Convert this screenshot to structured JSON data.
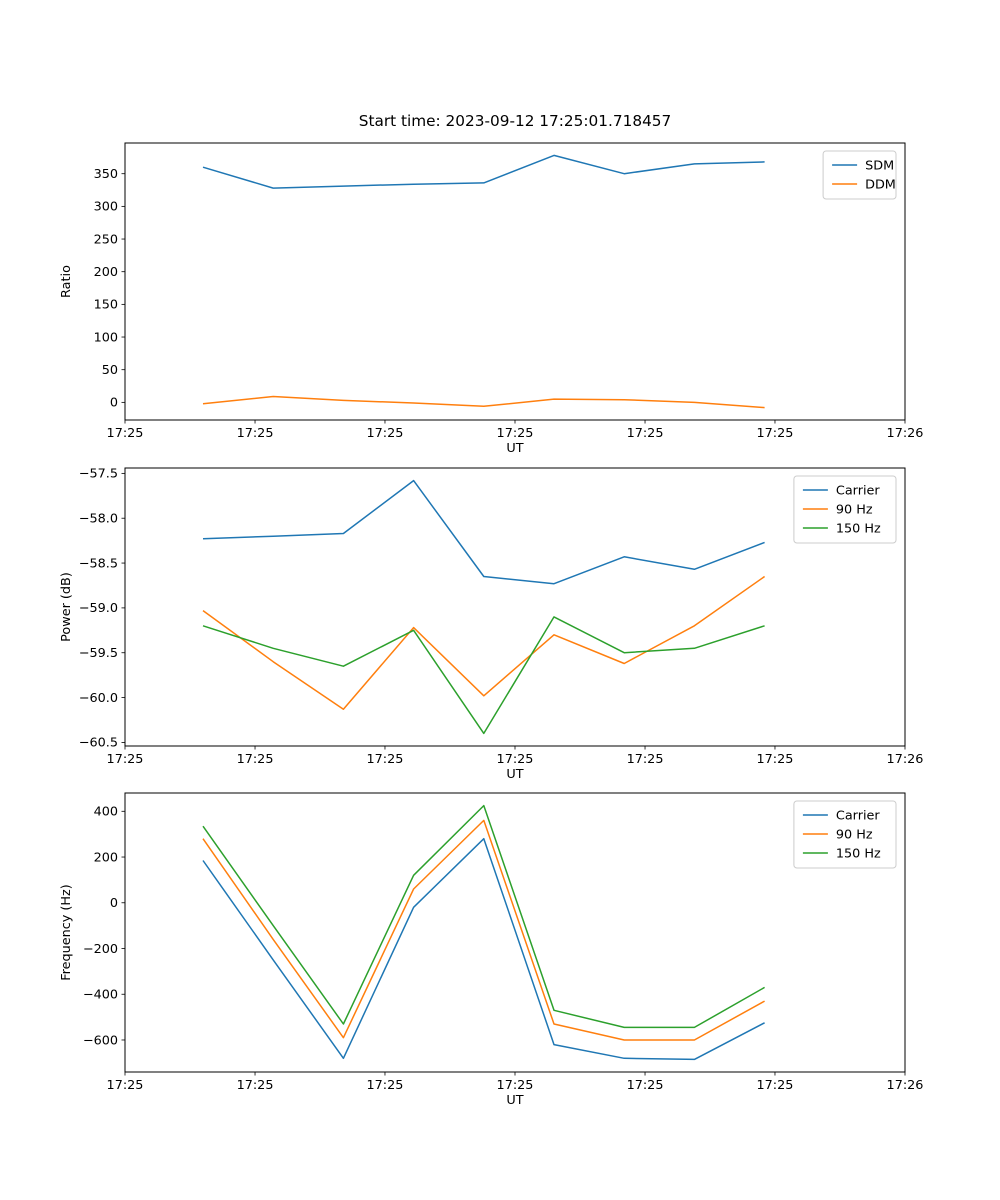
{
  "figure_title": "Start time: 2023-09-12 17:25:01.718457",
  "chart_data": [
    {
      "type": "line",
      "title": "Start time: 2023-09-12 17:25:01.718457",
      "xlabel": "UT",
      "ylabel": "Ratio",
      "xlim": [
        0,
        1
      ],
      "ylim": [
        -27,
        397
      ],
      "x_note": "x axis spans one minute from 17:25 to 17:26 (UT)",
      "x_tick_values": [
        0,
        0.1667,
        0.3333,
        0.5,
        0.6667,
        0.8333,
        1
      ],
      "x_tick_labels": [
        "17:25",
        "17:25",
        "17:25",
        "17:25",
        "17:25",
        "17:25",
        "17:26"
      ],
      "y_tick_values": [
        0,
        50,
        100,
        150,
        200,
        250,
        300,
        350
      ],
      "y_tick_labels": [
        "0",
        "50",
        "100",
        "150",
        "200",
        "250",
        "300",
        "350"
      ],
      "grid": false,
      "legend_position": "upper right",
      "x": [
        0.1,
        0.19,
        0.28,
        0.37,
        0.46,
        0.55,
        0.64,
        0.73,
        0.82
      ],
      "series": [
        {
          "name": "SDM",
          "color": "#1f77b4",
          "values": [
            360,
            328,
            331,
            334,
            336,
            378,
            350,
            365,
            368
          ]
        },
        {
          "name": "DDM",
          "color": "#ff7f0e",
          "values": [
            -2,
            9,
            3,
            -1,
            -6,
            5,
            4,
            0,
            -8
          ]
        }
      ]
    },
    {
      "type": "line",
      "title": "",
      "xlabel": "UT",
      "ylabel": "Power (dB)",
      "xlim": [
        0,
        1
      ],
      "ylim": [
        -60.54,
        -57.44
      ],
      "x_note": "x axis spans one minute from 17:25 to 17:26 (UT)",
      "x_tick_values": [
        0,
        0.1667,
        0.3333,
        0.5,
        0.6667,
        0.8333,
        1
      ],
      "x_tick_labels": [
        "17:25",
        "17:25",
        "17:25",
        "17:25",
        "17:25",
        "17:25",
        "17:26"
      ],
      "y_tick_values": [
        -60.5,
        -60.0,
        -59.5,
        -59.0,
        -58.5,
        -58.0,
        -57.5
      ],
      "y_tick_labels": [
        "−60.5",
        "−60.0",
        "−59.5",
        "−59.0",
        "−58.5",
        "−58.0",
        "−57.5"
      ],
      "grid": false,
      "legend_position": "upper right",
      "x": [
        0.1,
        0.19,
        0.28,
        0.37,
        0.46,
        0.55,
        0.64,
        0.73,
        0.82
      ],
      "series": [
        {
          "name": "Carrier",
          "color": "#1f77b4",
          "values": [
            -58.23,
            -58.2,
            -58.17,
            -57.58,
            -58.65,
            -58.73,
            -58.43,
            -58.57,
            -58.27
          ]
        },
        {
          "name": "90 Hz",
          "color": "#ff7f0e",
          "values": [
            -59.03,
            -59.6,
            -60.13,
            -59.22,
            -59.98,
            -59.3,
            -59.62,
            -59.2,
            -58.65
          ]
        },
        {
          "name": "150 Hz",
          "color": "#2ca02c",
          "values": [
            -59.2,
            -59.45,
            -59.65,
            -59.25,
            -60.4,
            -59.1,
            -59.5,
            -59.45,
            -59.2
          ]
        }
      ]
    },
    {
      "type": "line",
      "title": "",
      "xlabel": "UT",
      "ylabel": "Frequency (Hz)",
      "xlim": [
        0,
        1
      ],
      "ylim": [
        -740,
        480
      ],
      "x_note": "x axis spans one minute from 17:25 to 17:26 (UT)",
      "x_tick_values": [
        0,
        0.1667,
        0.3333,
        0.5,
        0.6667,
        0.8333,
        1
      ],
      "x_tick_labels": [
        "17:25",
        "17:25",
        "17:25",
        "17:25",
        "17:25",
        "17:25",
        "17:26"
      ],
      "y_tick_values": [
        -600,
        -400,
        -200,
        0,
        200,
        400
      ],
      "y_tick_labels": [
        "−600",
        "−400",
        "−200",
        "0",
        "200",
        "400"
      ],
      "grid": false,
      "legend_position": "upper right",
      "x": [
        0.1,
        0.19,
        0.28,
        0.37,
        0.46,
        0.55,
        0.64,
        0.73,
        0.82
      ],
      "series": [
        {
          "name": "Carrier",
          "color": "#1f77b4",
          "values": [
            185,
            -250,
            -680,
            -20,
            280,
            -620,
            -680,
            -685,
            -525
          ]
        },
        {
          "name": "90 Hz",
          "color": "#ff7f0e",
          "values": [
            280,
            -160,
            -590,
            60,
            360,
            -530,
            -600,
            -600,
            -430
          ]
        },
        {
          "name": "150 Hz",
          "color": "#2ca02c",
          "values": [
            335,
            -100,
            -530,
            120,
            425,
            -470,
            -545,
            -545,
            -370
          ]
        }
      ]
    }
  ]
}
